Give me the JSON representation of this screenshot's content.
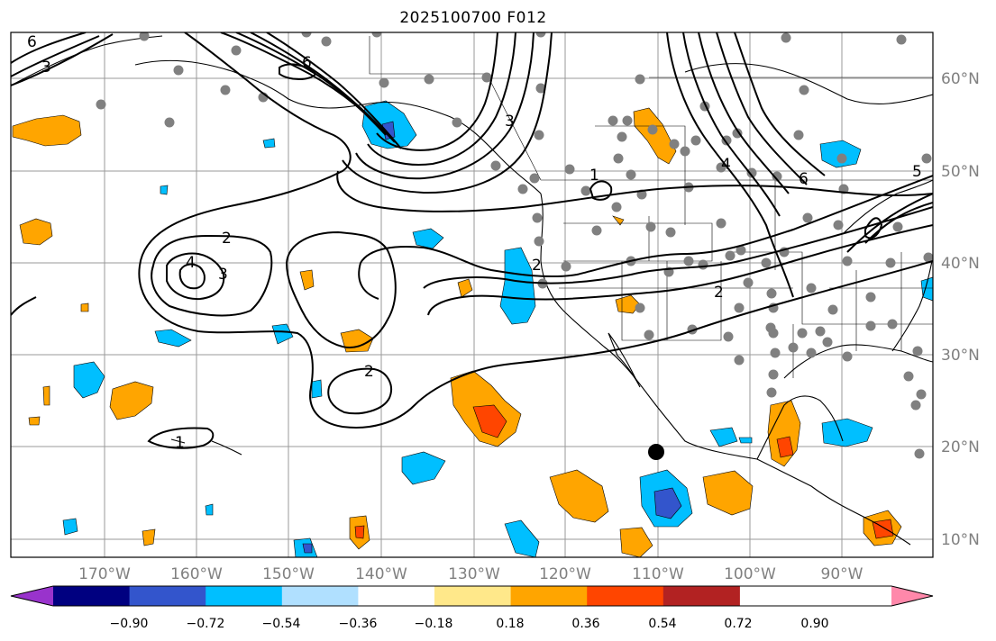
{
  "title": "2025100700 F012",
  "lon_labels": [
    "170°W",
    "160°W",
    "150°W",
    "140°W",
    "130°W",
    "120°W",
    "110°W",
    "100°W",
    "90°W"
  ],
  "lat_labels": [
    "60°N",
    "50°N",
    "40°N",
    "30°N",
    "20°N",
    "10°N"
  ],
  "colorbar": {
    "labels": [
      "−0.90",
      "−0.72",
      "−0.54",
      "−0.36",
      "−0.18",
      "0.18",
      "0.36",
      "0.54",
      "0.72",
      "0.90"
    ],
    "colors": [
      "#9933cc",
      "#000080",
      "#3355cc",
      "#00bfff",
      "#b0e0ff",
      "#ffffff",
      "#ffe88a",
      "#ffa500",
      "#ff4500",
      "#b22222",
      "#ff88aa"
    ]
  },
  "contour_labels": [
    "2",
    "3",
    "4",
    "2",
    "2",
    "1",
    "1",
    "2",
    "4",
    "5",
    "6",
    "3",
    "6",
    "6",
    "3"
  ],
  "colors": {
    "orange": "#ffa500",
    "red": "#ff4500",
    "pale_yellow": "#ffe88a",
    "sky": "#00bfff",
    "light_sky": "#b0e0ff",
    "royal": "#3355cc",
    "station": "#808080"
  }
}
